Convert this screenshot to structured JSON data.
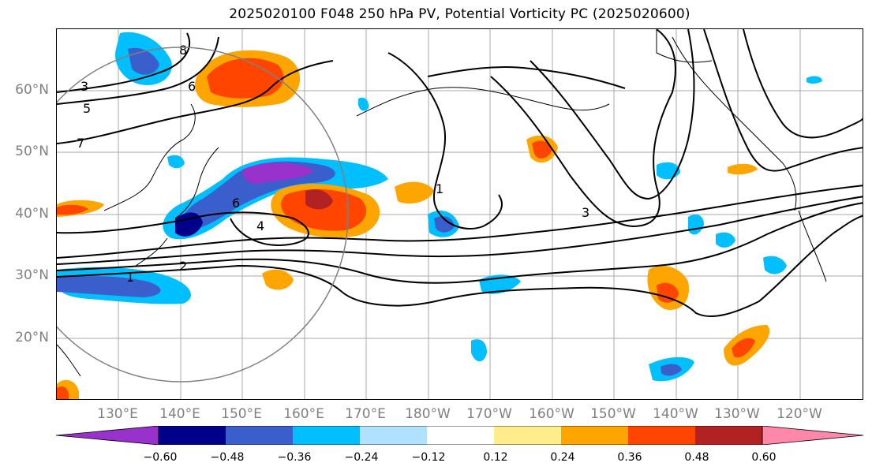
{
  "title": "2025020100 F048 250 hPa PV, Potential Vorticity PC (2025020600)",
  "lat_labels": [
    "60°N",
    "50°N",
    "40°N",
    "30°N",
    "20°N"
  ],
  "lon_labels": [
    "130°E",
    "140°E",
    "150°E",
    "160°E",
    "170°E",
    "180°W",
    "170°W",
    "160°W",
    "150°W",
    "140°W",
    "130°W",
    "120°W"
  ],
  "colorbar": {
    "ticks": [
      "−0.60",
      "−0.48",
      "−0.36",
      "−0.24",
      "−0.12",
      "0.12",
      "0.24",
      "0.36",
      "0.48",
      "0.60"
    ],
    "colors": [
      "#9932CC",
      "#00008B",
      "#3A5FCD",
      "#00BFFF",
      "#B0E2FF",
      "#FFFFFF",
      "#FFEC8B",
      "#FFA500",
      "#FF4500",
      "#B22222",
      "#FF88AA"
    ]
  },
  "contour_labels": [
    "1",
    "2",
    "3",
    "4",
    "5",
    "6",
    "7",
    "8"
  ]
}
